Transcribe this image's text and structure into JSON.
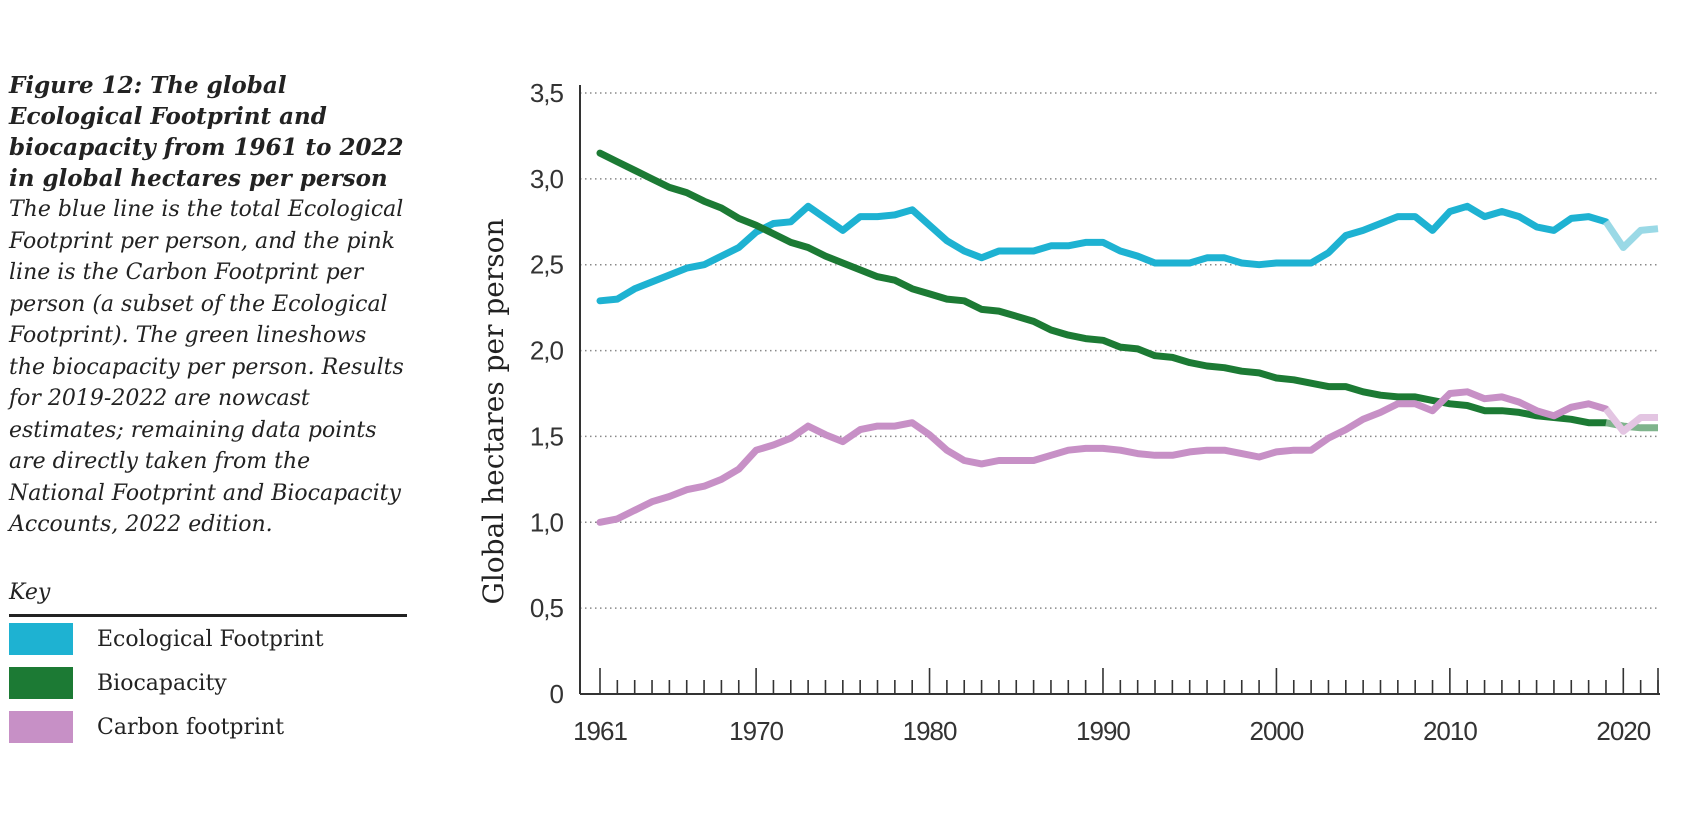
{
  "caption": {
    "title": "Figure 12: The global Ecological Footprint and biocapacity from 1961 to 2022 in global hectares per person",
    "description": "The blue line is the total Ecological Footprint per person, and the pink line is the Carbon Footprint per person (a subset of the Ecological Footprint). The green lineshows the biocapacity per person. Results for 2019-2022 are nowcast estimates; remaining data points are directly taken from the National Footprint and Biocapacity Accounts, 2022 edition."
  },
  "key": {
    "title": "Key",
    "items": [
      {
        "label": "Ecological Footprint",
        "color": "#1eb2d2"
      },
      {
        "label": "Biocapacity",
        "color": "#1c7a34"
      },
      {
        "label": "Carbon footprint",
        "color": "#c790c6"
      }
    ]
  },
  "chart_data": {
    "type": "line",
    "ylabel": "Global hectares per person",
    "xlabel": "",
    "ylim": [
      0,
      3.5
    ],
    "xlim": [
      1961,
      2022
    ],
    "x_tick_labels": [
      "1961",
      "1970",
      "1980",
      "1990",
      "2000",
      "2010",
      "2020"
    ],
    "x_tick_values": [
      1961,
      1970,
      1980,
      1990,
      2000,
      2010,
      2020
    ],
    "y_tick_labels": [
      "0",
      "0,5",
      "1,0",
      "1,5",
      "2,0",
      "2,5",
      "3,0",
      "3,5"
    ],
    "y_tick_values": [
      0,
      0.5,
      1.0,
      1.5,
      2.0,
      2.5,
      3.0,
      3.5
    ],
    "grid": "horizontal dotted",
    "nowcast_from": 2019,
    "x": [
      1961,
      1962,
      1963,
      1964,
      1965,
      1966,
      1967,
      1968,
      1969,
      1970,
      1971,
      1972,
      1973,
      1974,
      1975,
      1976,
      1977,
      1978,
      1979,
      1980,
      1981,
      1982,
      1983,
      1984,
      1985,
      1986,
      1987,
      1988,
      1989,
      1990,
      1991,
      1992,
      1993,
      1994,
      1995,
      1996,
      1997,
      1998,
      1999,
      2000,
      2001,
      2002,
      2003,
      2004,
      2005,
      2006,
      2007,
      2008,
      2009,
      2010,
      2011,
      2012,
      2013,
      2014,
      2015,
      2016,
      2017,
      2018,
      2019,
      2020,
      2021,
      2022
    ],
    "series": [
      {
        "name": "Ecological Footprint",
        "color": "#1eb2d2",
        "nowcast_color": "#9ad9e6",
        "values": [
          2.29,
          2.3,
          2.36,
          2.4,
          2.44,
          2.48,
          2.5,
          2.55,
          2.6,
          2.69,
          2.74,
          2.75,
          2.84,
          2.77,
          2.7,
          2.78,
          2.78,
          2.79,
          2.82,
          2.73,
          2.64,
          2.58,
          2.54,
          2.58,
          2.58,
          2.58,
          2.61,
          2.61,
          2.63,
          2.63,
          2.58,
          2.55,
          2.51,
          2.51,
          2.51,
          2.54,
          2.54,
          2.51,
          2.5,
          2.51,
          2.51,
          2.51,
          2.57,
          2.67,
          2.7,
          2.74,
          2.78,
          2.78,
          2.7,
          2.81,
          2.84,
          2.78,
          2.81,
          2.78,
          2.72,
          2.7,
          2.77,
          2.78,
          2.75,
          2.6,
          2.7,
          2.71
        ]
      },
      {
        "name": "Biocapacity",
        "color": "#1c7a34",
        "nowcast_color": "#7fb48c",
        "values": [
          3.15,
          3.1,
          3.05,
          3.0,
          2.95,
          2.92,
          2.87,
          2.83,
          2.77,
          2.73,
          2.68,
          2.63,
          2.6,
          2.55,
          2.51,
          2.47,
          2.43,
          2.41,
          2.36,
          2.33,
          2.3,
          2.29,
          2.24,
          2.23,
          2.2,
          2.17,
          2.12,
          2.09,
          2.07,
          2.06,
          2.02,
          2.01,
          1.97,
          1.96,
          1.93,
          1.91,
          1.9,
          1.88,
          1.87,
          1.84,
          1.83,
          1.81,
          1.79,
          1.79,
          1.76,
          1.74,
          1.73,
          1.73,
          1.71,
          1.69,
          1.68,
          1.65,
          1.65,
          1.64,
          1.62,
          1.61,
          1.6,
          1.58,
          1.58,
          1.56,
          1.55,
          1.55
        ]
      },
      {
        "name": "Carbon footprint",
        "color": "#c790c6",
        "nowcast_color": "#e3c5e2",
        "values": [
          1.0,
          1.02,
          1.07,
          1.12,
          1.15,
          1.19,
          1.21,
          1.25,
          1.31,
          1.42,
          1.45,
          1.49,
          1.56,
          1.51,
          1.47,
          1.54,
          1.56,
          1.56,
          1.58,
          1.51,
          1.42,
          1.36,
          1.34,
          1.36,
          1.36,
          1.36,
          1.39,
          1.42,
          1.43,
          1.43,
          1.42,
          1.4,
          1.39,
          1.39,
          1.41,
          1.42,
          1.42,
          1.4,
          1.38,
          1.41,
          1.42,
          1.42,
          1.49,
          1.54,
          1.6,
          1.64,
          1.69,
          1.69,
          1.65,
          1.75,
          1.76,
          1.72,
          1.73,
          1.7,
          1.65,
          1.62,
          1.67,
          1.69,
          1.66,
          1.53,
          1.61,
          1.61
        ]
      }
    ]
  }
}
